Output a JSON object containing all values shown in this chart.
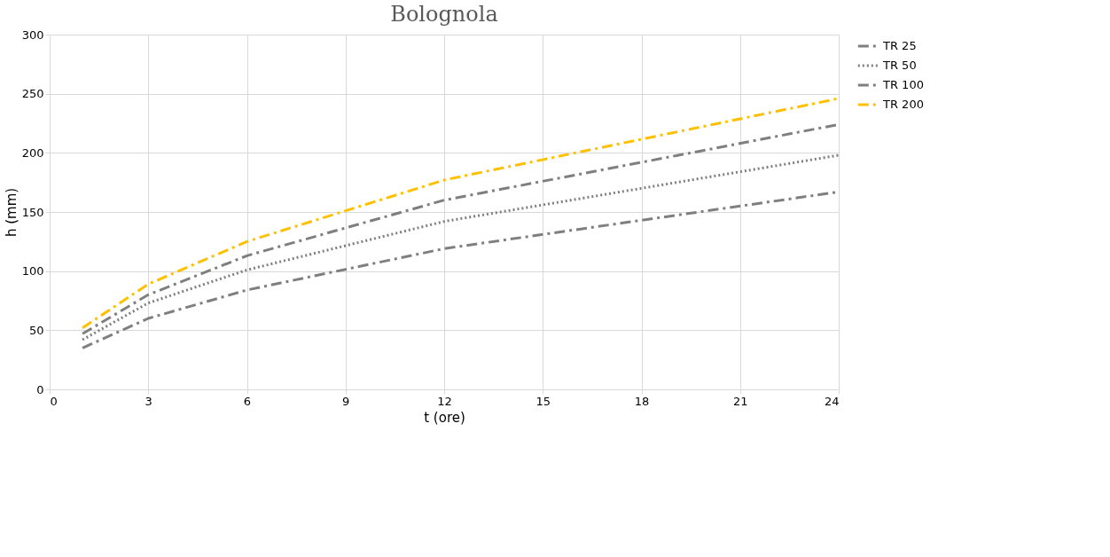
{
  "chart_data": {
    "type": "line",
    "title": "Bolognola",
    "xlabel": "t (ore)",
    "ylabel": "h (mm)",
    "x": [
      1,
      3,
      6,
      12,
      24
    ],
    "series": [
      {
        "name": "TR 25",
        "color": "#7f7f7f",
        "line_style": "dashed",
        "values": [
          35,
          60,
          84,
          119,
          167
        ]
      },
      {
        "name": "TR 50",
        "color": "#7f7f7f",
        "line_style": "dotted",
        "values": [
          42,
          73,
          101,
          142,
          198
        ]
      },
      {
        "name": "TR 100",
        "color": "#7f7f7f",
        "line_style": "dashed",
        "values": [
          47,
          80,
          113,
          160,
          224
        ]
      },
      {
        "name": "TR 200",
        "color": "#ffc000",
        "line_style": "dashed",
        "values": [
          52,
          89,
          125,
          177,
          246
        ]
      }
    ],
    "xlim": [
      0,
      24
    ],
    "xticks": [
      0,
      3,
      6,
      9,
      12,
      15,
      18,
      21,
      24
    ],
    "ylim": [
      0,
      300
    ],
    "yticks": [
      0,
      50,
      100,
      150,
      200,
      250,
      300
    ],
    "grid": true,
    "legend": "right",
    "marker": "none"
  }
}
